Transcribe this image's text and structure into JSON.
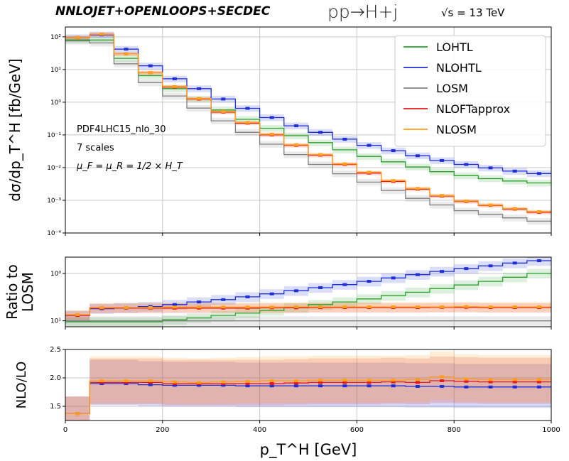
{
  "header": {
    "left": "NNLOJET+OPENLOOPS+SECDEC",
    "middle": "pp→H+j",
    "right": "√s = 13 TeV"
  },
  "annotations": [
    "PDF4LHC15_nlo_30",
    "7 scales",
    "μ_F = μ_R = 1/2 × H_T"
  ],
  "colors": {
    "LOHTL": "#2ca02c",
    "NLOHTL": "#1f2fd6",
    "LOSM": "#808080",
    "NLOFTapprox": "#e41a1c",
    "NLOSM": "#ff9f1c"
  },
  "chart_data": [
    {
      "type": "line",
      "title": "",
      "xlabel": "p_T^H  [GeV]",
      "ylabel": "dσ/dp_T^H  [fb/GeV]",
      "yscale": "log",
      "xlim": [
        0,
        1000
      ],
      "ylim": [
        0.0001,
        200
      ],
      "yticks": [
        "10²",
        "10¹",
        "10⁰",
        "10⁻¹",
        "10⁻²",
        "10⁻³",
        "10⁻⁴"
      ],
      "legend_position": "top-right",
      "grid": true,
      "x_edges": [
        0,
        50,
        100,
        150,
        200,
        250,
        300,
        350,
        400,
        450,
        500,
        550,
        600,
        650,
        700,
        750,
        800,
        850,
        900,
        950,
        1000
      ],
      "series": [
        {
          "name": "LOHTL",
          "values": [
            80,
            80,
            22,
            6.5,
            2.6,
            1.25,
            0.58,
            0.3,
            0.16,
            0.095,
            0.058,
            0.035,
            0.022,
            0.015,
            0.0105,
            0.0075,
            0.0057,
            0.0046,
            0.0039,
            0.0034
          ]
        },
        {
          "name": "NLOHTL",
          "values": [
            95,
            115,
            42,
            13,
            5.2,
            2.6,
            1.25,
            0.65,
            0.34,
            0.19,
            0.12,
            0.074,
            0.048,
            0.033,
            0.023,
            0.0165,
            0.0125,
            0.0098,
            0.0078,
            0.0066
          ]
        },
        {
          "name": "LOSM",
          "values": [
            75,
            65,
            15,
            4.0,
            1.55,
            0.66,
            0.27,
            0.12,
            0.052,
            0.025,
            0.0125,
            0.0065,
            0.0036,
            0.002,
            0.00115,
            0.00072,
            0.00048,
            0.00037,
            0.00029,
            0.00023
          ]
        },
        {
          "name": "NLOFTapprox",
          "values": [
            95,
            120,
            30,
            8.0,
            2.9,
            1.25,
            0.5,
            0.23,
            0.1,
            0.048,
            0.024,
            0.0125,
            0.0068,
            0.0038,
            0.0022,
            0.00135,
            0.00092,
            0.0007,
            0.00054,
            0.00043
          ]
        },
        {
          "name": "NLOSM",
          "values": [
            95,
            120,
            30,
            8.0,
            3.0,
            1.3,
            0.52,
            0.24,
            0.105,
            0.05,
            0.025,
            0.013,
            0.0072,
            0.004,
            0.0023,
            0.0014,
            0.00095,
            0.00072,
            0.00056,
            0.00045
          ]
        }
      ]
    },
    {
      "type": "line",
      "title": "",
      "xlabel": "",
      "ylabel": "Ratio to LOSM",
      "yscale": "log",
      "xlim": [
        0,
        1000
      ],
      "ylim": [
        0.75,
        22
      ],
      "yticks": [
        "10⁰",
        "10¹"
      ],
      "grid": true,
      "x_edges": [
        0,
        50,
        100,
        150,
        200,
        250,
        300,
        350,
        400,
        450,
        500,
        550,
        600,
        650,
        700,
        750,
        800,
        850,
        900,
        950,
        1000
      ],
      "series": [
        {
          "name": "LOHTL",
          "values": [
            0.95,
            0.95,
            0.95,
            0.95,
            1.05,
            1.15,
            1.3,
            1.45,
            1.65,
            1.9,
            2.2,
            2.5,
            2.9,
            3.4,
            4.0,
            4.8,
            5.7,
            6.8,
            8.3,
            10.0
          ]
        },
        {
          "name": "NLOHTL",
          "values": [
            1.3,
            1.8,
            1.9,
            2.0,
            2.2,
            2.5,
            2.8,
            3.2,
            3.7,
            4.3,
            5.0,
            5.8,
            6.8,
            8.0,
            9.4,
            11.0,
            12.6,
            14.4,
            16.5,
            18.5
          ]
        },
        {
          "name": "LOSM",
          "values": [
            1,
            1,
            1,
            1,
            1,
            1,
            1,
            1,
            1,
            1,
            1,
            1,
            1,
            1,
            1,
            1,
            1,
            1,
            1,
            1
          ]
        },
        {
          "name": "NLOFTapprox",
          "values": [
            1.3,
            1.85,
            1.85,
            1.85,
            1.85,
            1.85,
            1.85,
            1.85,
            1.88,
            1.88,
            1.9,
            1.9,
            1.9,
            1.9,
            1.9,
            1.92,
            1.92,
            1.9,
            1.9,
            1.9
          ]
        },
        {
          "name": "NLOSM",
          "values": [
            1.35,
            1.9,
            1.9,
            1.9,
            1.95,
            1.95,
            1.95,
            1.95,
            1.95,
            1.97,
            1.97,
            1.97,
            1.97,
            1.97,
            1.97,
            1.97,
            2.0,
            1.97,
            1.97,
            1.97
          ]
        }
      ]
    },
    {
      "type": "line",
      "title": "",
      "xlabel": "p_T^H  [GeV]",
      "ylabel": "NLO/LO",
      "yscale": "linear",
      "xlim": [
        0,
        1000
      ],
      "ylim": [
        1.25,
        2.5
      ],
      "yticks": [
        "1.5",
        "2.0",
        "2.5"
      ],
      "xticks": [
        "0",
        "200",
        "400",
        "600",
        "800",
        "1000"
      ],
      "grid": true,
      "x_edges": [
        0,
        50,
        100,
        150,
        200,
        250,
        300,
        350,
        400,
        450,
        500,
        550,
        600,
        650,
        700,
        750,
        800,
        850,
        900,
        950,
        1000
      ],
      "series": [
        {
          "name": "NLOHTL",
          "values": [
            1.37,
            1.9,
            1.9,
            1.88,
            1.87,
            1.87,
            1.87,
            1.86,
            1.86,
            1.86,
            1.86,
            1.86,
            1.86,
            1.86,
            1.85,
            1.85,
            1.84,
            1.84,
            1.84,
            1.84
          ]
        },
        {
          "name": "NLOFTapprox",
          "values": [
            1.37,
            1.92,
            1.92,
            1.92,
            1.9,
            1.9,
            1.9,
            1.9,
            1.9,
            1.91,
            1.92,
            1.92,
            1.92,
            1.93,
            1.92,
            1.95,
            1.94,
            1.93,
            1.93,
            1.93
          ]
        },
        {
          "name": "NLOSM",
          "values": [
            1.37,
            1.95,
            1.95,
            1.95,
            1.93,
            1.92,
            1.93,
            1.94,
            1.95,
            1.95,
            1.96,
            1.96,
            1.96,
            1.96,
            1.97,
            2.02,
            1.98,
            1.97,
            1.97,
            1.97
          ]
        }
      ]
    }
  ]
}
